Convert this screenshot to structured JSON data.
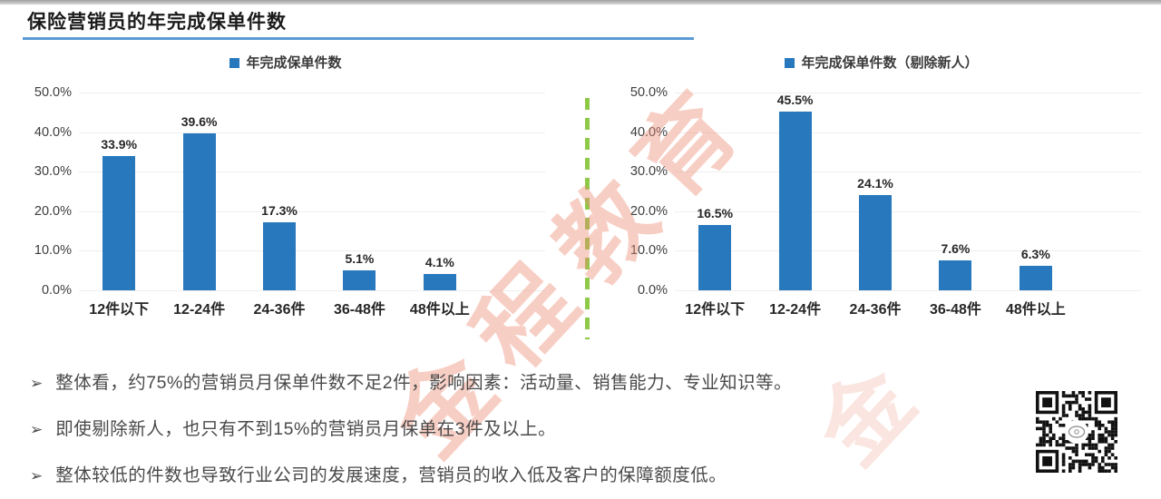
{
  "page": {
    "title": "保险营销员的年完成保单件数"
  },
  "colors": {
    "bar_blue": "#2878BE",
    "underline_blue": "#5B9BD5",
    "divider_green": "#8FC948",
    "watermark_salmon": "#ED8D75"
  },
  "chart_data": [
    {
      "type": "bar",
      "legend_label": "年完成保单件数",
      "categories": [
        "12件以下",
        "12-24件",
        "24-36件",
        "36-48件",
        "48件以上"
      ],
      "values": [
        33.9,
        39.6,
        17.3,
        5.1,
        4.1
      ],
      "value_labels": [
        "33.9%",
        "39.6%",
        "17.3%",
        "5.1%",
        "4.1%"
      ],
      "ylim": [
        0,
        50
      ],
      "yticks": [
        "50.0%",
        "40.0%",
        "30.0%",
        "20.0%",
        "10.0%",
        "0.0%"
      ],
      "bar_color": "#2878BE",
      "grid": true,
      "legend_position": "top",
      "xlabel": "",
      "ylabel": ""
    },
    {
      "type": "bar",
      "legend_label": "年完成保单件数（剔除新人）",
      "categories": [
        "12件以下",
        "12-24件",
        "24-36件",
        "36-48件",
        "48件以上"
      ],
      "values": [
        16.5,
        45.5,
        24.1,
        7.6,
        6.3
      ],
      "value_labels": [
        "16.5%",
        "45.5%",
        "24.1%",
        "7.6%",
        "6.3%"
      ],
      "ylim": [
        0,
        50
      ],
      "yticks": [
        "50.0%",
        "40.0%",
        "30.0%",
        "20.0%",
        "10.0%",
        "0.0%"
      ],
      "bar_color": "#2878BE",
      "grid": true,
      "legend_position": "top",
      "xlabel": "",
      "ylabel": ""
    }
  ],
  "bullet_marker": "➢",
  "bullets": [
    "整体看，约75%的营销员月保单件数不足2件，影响因素：活动量、销售能力、专业知识等。",
    "即使剔除新人，也只有不到15%的营销员月保单在3件及以上。",
    "整体较低的件数也导致行业公司的发展速度，营销员的收入低及客户的保障额度低。"
  ],
  "watermark": {
    "text": "金程教育",
    "partial": "金"
  }
}
